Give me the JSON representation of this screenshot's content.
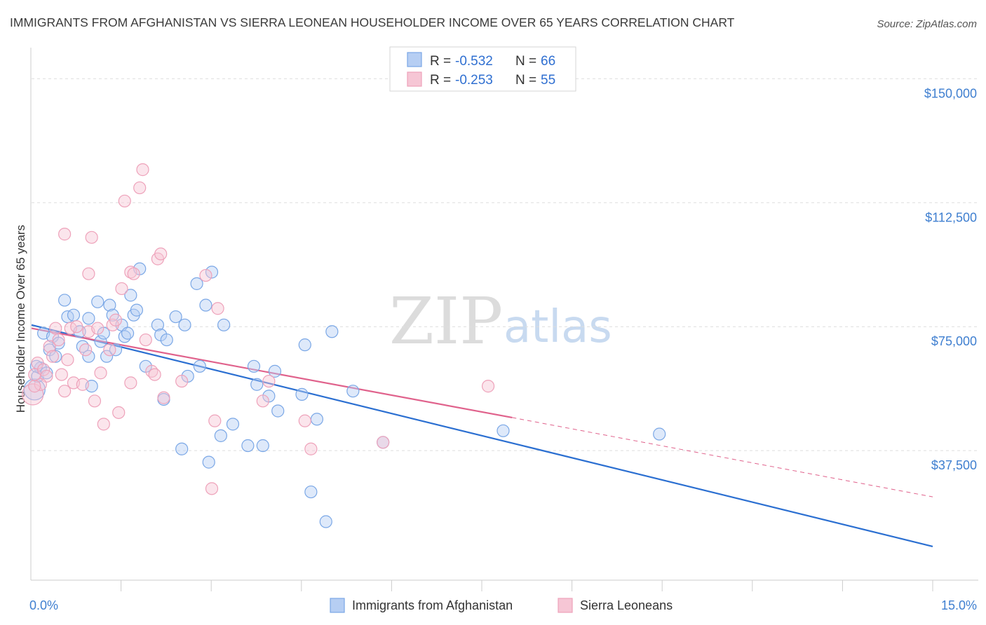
{
  "title": "IMMIGRANTS FROM AFGHANISTAN VS SIERRA LEONEAN HOUSEHOLDER INCOME OVER 65 YEARS CORRELATION CHART",
  "source": "Source: ZipAtlas.com",
  "watermark": {
    "zip": "ZIP",
    "atlas": "atlas"
  },
  "legend_top": {
    "rows": [
      {
        "r_label": "R = ",
        "r_value": "-0.532",
        "n_label": "N = ",
        "n_value": "66"
      },
      {
        "r_label": "R = ",
        "r_value": "-0.253",
        "n_label": "N = ",
        "n_value": "55"
      }
    ]
  },
  "legend_bottom": {
    "series1": "Immigrants from Afghanistan",
    "series2": "Sierra Leoneans"
  },
  "chart_data": {
    "type": "scatter",
    "title": "IMMIGRANTS FROM AFGHANISTAN VS SIERRA LEONEAN HOUSEHOLDER INCOME OVER 65 YEARS CORRELATION CHART",
    "xlabel": "",
    "ylabel": "Householder Income Over 65 years",
    "xlim": [
      0,
      15
    ],
    "ylim": [
      0,
      157500
    ],
    "x_tick_labels": [
      "0.0%",
      "15.0%"
    ],
    "y_ticks": [
      37500,
      75000,
      112500,
      150000
    ],
    "y_tick_labels": [
      "$37,500",
      "$75,000",
      "$112,500",
      "$150,000"
    ],
    "grid": true,
    "legend_placement": "top-center",
    "series": [
      {
        "name": "Immigrants from Afghanistan",
        "color": "#7aa7e6",
        "fill": "#b6cef3",
        "trend": {
          "x0": 0,
          "y0": 75500,
          "x1": 15,
          "y1": 8500,
          "color": "#2b6fd1"
        },
        "points": [
          [
            0.05,
            56000
          ],
          [
            0.1,
            60000
          ],
          [
            0.15,
            62500
          ],
          [
            0.2,
            73000
          ],
          [
            0.25,
            61000
          ],
          [
            0.3,
            68000
          ],
          [
            0.35,
            72000
          ],
          [
            0.4,
            66000
          ],
          [
            0.45,
            70000
          ],
          [
            0.55,
            83000
          ],
          [
            0.6,
            78000
          ],
          [
            0.7,
            78500
          ],
          [
            0.8,
            73500
          ],
          [
            0.85,
            69000
          ],
          [
            0.95,
            66000
          ],
          [
            0.95,
            77500
          ],
          [
            1.0,
            57000
          ],
          [
            1.1,
            82500
          ],
          [
            1.15,
            70500
          ],
          [
            1.2,
            73000
          ],
          [
            1.25,
            66000
          ],
          [
            1.3,
            81500
          ],
          [
            1.35,
            78500
          ],
          [
            1.4,
            68000
          ],
          [
            1.5,
            75500
          ],
          [
            1.55,
            72000
          ],
          [
            1.6,
            73000
          ],
          [
            1.65,
            84500
          ],
          [
            1.7,
            78500
          ],
          [
            1.75,
            80000
          ],
          [
            1.8,
            92500
          ],
          [
            1.9,
            63000
          ],
          [
            2.1,
            75500
          ],
          [
            2.15,
            72500
          ],
          [
            2.2,
            53000
          ],
          [
            2.25,
            71000
          ],
          [
            2.4,
            78000
          ],
          [
            2.5,
            38000
          ],
          [
            2.55,
            75500
          ],
          [
            2.6,
            60000
          ],
          [
            2.75,
            88000
          ],
          [
            2.8,
            63000
          ],
          [
            2.9,
            81500
          ],
          [
            2.95,
            34000
          ],
          [
            3.0,
            91500
          ],
          [
            3.15,
            42000
          ],
          [
            3.2,
            75500
          ],
          [
            3.35,
            45500
          ],
          [
            3.6,
            39000
          ],
          [
            3.7,
            63000
          ],
          [
            3.75,
            57500
          ],
          [
            3.85,
            39000
          ],
          [
            3.95,
            54000
          ],
          [
            4.05,
            61500
          ],
          [
            4.1,
            49500
          ],
          [
            4.5,
            54500
          ],
          [
            4.55,
            69500
          ],
          [
            4.65,
            25000
          ],
          [
            4.75,
            47000
          ],
          [
            4.9,
            16000
          ],
          [
            5.0,
            73500
          ],
          [
            5.35,
            55500
          ],
          [
            5.85,
            40000
          ],
          [
            7.85,
            43500
          ],
          [
            10.45,
            42500
          ],
          [
            0.08,
            63000
          ]
        ]
      },
      {
        "name": "Sierra Leoneans",
        "color": "#eea2ba",
        "fill": "#f6c6d5",
        "trend": {
          "x0": 0,
          "y0": 74500,
          "x1": 8.0,
          "y1": 47500,
          "dash_x1": 15,
          "dash_y1": 23500,
          "color": "#e0628c"
        },
        "points": [
          [
            0.02,
            54500
          ],
          [
            0.05,
            60500
          ],
          [
            0.1,
            64000
          ],
          [
            0.2,
            62000
          ],
          [
            0.25,
            60000
          ],
          [
            0.3,
            69000
          ],
          [
            0.4,
            74500
          ],
          [
            0.45,
            71000
          ],
          [
            0.55,
            55500
          ],
          [
            0.55,
            103000
          ],
          [
            0.6,
            65000
          ],
          [
            0.65,
            74500
          ],
          [
            0.7,
            58000
          ],
          [
            0.75,
            75000
          ],
          [
            0.85,
            57500
          ],
          [
            0.9,
            68000
          ],
          [
            0.95,
            73500
          ],
          [
            0.95,
            91000
          ],
          [
            1.0,
            102000
          ],
          [
            1.05,
            52500
          ],
          [
            1.1,
            74500
          ],
          [
            1.2,
            45500
          ],
          [
            1.3,
            68000
          ],
          [
            1.35,
            75500
          ],
          [
            1.45,
            49000
          ],
          [
            1.5,
            86500
          ],
          [
            1.55,
            113000
          ],
          [
            1.65,
            58000
          ],
          [
            1.65,
            91500
          ],
          [
            1.7,
            91000
          ],
          [
            1.8,
            117000
          ],
          [
            1.85,
            122500
          ],
          [
            1.9,
            71000
          ],
          [
            2.0,
            61500
          ],
          [
            2.1,
            95500
          ],
          [
            2.15,
            97000
          ],
          [
            2.2,
            53500
          ],
          [
            2.5,
            58500
          ],
          [
            2.9,
            90500
          ],
          [
            3.0,
            26000
          ],
          [
            3.05,
            46500
          ],
          [
            3.1,
            80500
          ],
          [
            3.85,
            52500
          ],
          [
            3.95,
            58500
          ],
          [
            4.55,
            46500
          ],
          [
            4.65,
            38000
          ],
          [
            5.85,
            40000
          ],
          [
            7.6,
            57000
          ],
          [
            1.15,
            61000
          ],
          [
            0.35,
            66000
          ],
          [
            2.05,
            60500
          ],
          [
            0.15,
            57500
          ],
          [
            0.5,
            60500
          ],
          [
            1.4,
            77000
          ],
          [
            0.05,
            57000
          ]
        ]
      }
    ]
  }
}
